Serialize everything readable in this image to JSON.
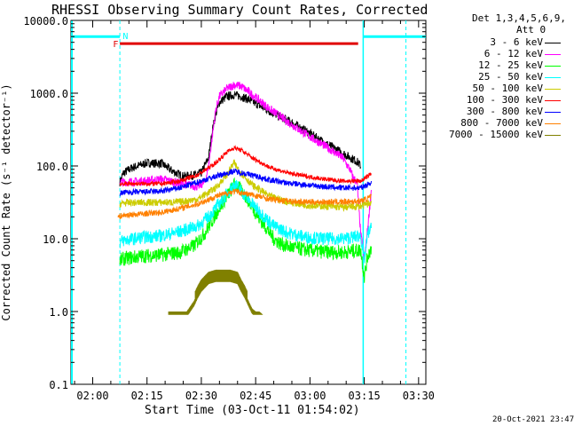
{
  "title": "RHESSI Observing Summary Count Rates, Corrected",
  "xlabel": "Start Time (03-Oct-11 01:54:02)",
  "ylabel": "Corrected Count Rate (s⁻¹ detector⁻¹)",
  "footer": "20-Oct-2021 23:47",
  "legend_header": [
    "Det 1,3,4,5,6,9,",
    "Att 0"
  ],
  "flags": {
    "flare_label": "F",
    "night_label": "N"
  },
  "colors": {
    "axes": "#000000",
    "cyan_markers": "#00ffff",
    "flare_bar": "#e00000"
  },
  "chart_data": {
    "type": "line",
    "title": "RHESSI Observing Summary Count Rates, Corrected",
    "xlabel": "Start Time (03-Oct-11 01:54:02)",
    "ylabel": "Corrected Count Rate (s⁻¹ detector⁻¹)",
    "x_tick_labels": [
      "02:00",
      "02:15",
      "02:30",
      "02:45",
      "03:00",
      "03:15",
      "03:30"
    ],
    "x_ticks_minutes": [
      6,
      21,
      36,
      51,
      66,
      81,
      96
    ],
    "xlim_minutes": [
      0,
      98
    ],
    "y_scale": "log",
    "ylim": [
      0.1,
      10000
    ],
    "y_tick_values": [
      0.1,
      1,
      10,
      100,
      1000,
      10000
    ],
    "y_tick_labels": [
      "0.1",
      "1.0",
      "10.0",
      "100.0",
      "1000.0",
      "10000.0"
    ],
    "grid": false,
    "legend_position": "right",
    "series": [
      {
        "name": "3 - 6 keV",
        "color": "#000000",
        "noise": 0.06,
        "x": [
          13.5,
          14.5,
          17,
          21,
          25,
          28,
          31,
          34,
          36,
          38,
          39,
          40,
          41,
          43,
          45,
          47,
          49,
          52,
          55,
          60,
          65,
          70,
          75,
          79,
          80
        ],
        "y": [
          60,
          80,
          95,
          110,
          108,
          85,
          72,
          75,
          80,
          130,
          300,
          520,
          750,
          900,
          950,
          900,
          820,
          680,
          560,
          420,
          300,
          210,
          150,
          115,
          100
        ]
      },
      {
        "name": "6 - 12 keV",
        "color": "#ff00ff",
        "noise": 0.06,
        "x": [
          13.5,
          14.5,
          20,
          25,
          30,
          35,
          37,
          38,
          39,
          40,
          41,
          43,
          45,
          47,
          49,
          52,
          55,
          60,
          65,
          70,
          75,
          77,
          78,
          79,
          80,
          81,
          82,
          83
        ],
        "y": [
          60,
          60,
          62,
          66,
          58,
          52,
          60,
          100,
          250,
          600,
          900,
          1150,
          1300,
          1250,
          1050,
          800,
          600,
          400,
          270,
          190,
          130,
          90,
          68,
          60,
          12,
          5,
          15,
          50
        ]
      },
      {
        "name": "12 - 25 keV",
        "color": "#00ff00",
        "noise": 0.1,
        "x": [
          13.5,
          14.5,
          20,
          25,
          30,
          34,
          37,
          40,
          42,
          44,
          45,
          46,
          48,
          50,
          52,
          54,
          56,
          58,
          60,
          65,
          70,
          75,
          80,
          81,
          82,
          83
        ],
        "y": [
          5,
          5.3,
          5.8,
          6,
          6.5,
          8,
          12,
          22,
          32,
          45,
          55,
          52,
          40,
          28,
          19,
          14,
          10,
          8.5,
          7.8,
          7,
          6.6,
          6.5,
          7,
          3,
          6,
          7.5
        ]
      },
      {
        "name": "25 - 50 keV",
        "color": "#00ffff",
        "noise": 0.09,
        "x": [
          13.5,
          14.5,
          20,
          25,
          30,
          35,
          38,
          42,
          44,
          45,
          46,
          48,
          50,
          53,
          56,
          60,
          65,
          70,
          75,
          80,
          81,
          82,
          83
        ],
        "y": [
          9,
          9.5,
          10.5,
          11,
          12.5,
          15,
          20,
          35,
          48,
          55,
          52,
          40,
          30,
          21,
          15,
          12,
          10.5,
          10,
          10,
          11,
          5,
          12,
          14
        ]
      },
      {
        "name": "50 - 100 keV",
        "color": "#cccc00",
        "noise": 0.05,
        "x": [
          13.5,
          14.5,
          20,
          25,
          30,
          35,
          40,
          43,
          45,
          47,
          50,
          55,
          60,
          65,
          70,
          75,
          80,
          82,
          83
        ],
        "y": [
          30,
          31,
          31.5,
          31.5,
          32,
          35,
          50,
          75,
          110,
          80,
          55,
          38,
          32,
          29,
          28,
          27,
          28,
          30,
          32
        ]
      },
      {
        "name": "100 - 300 keV",
        "color": "#ff0000",
        "noise": 0.03,
        "x": [
          13.5,
          14.5,
          20,
          25,
          30,
          35,
          40,
          43,
          45,
          47,
          50,
          55,
          60,
          65,
          70,
          75,
          80,
          82,
          83
        ],
        "y": [
          57,
          57,
          57,
          57,
          62,
          75,
          110,
          155,
          178,
          165,
          130,
          95,
          80,
          72,
          66,
          62,
          62,
          72,
          80
        ]
      },
      {
        "name": "300 - 800 keV",
        "color": "#0000ff",
        "noise": 0.04,
        "x": [
          13.5,
          14.5,
          20,
          25,
          30,
          35,
          40,
          45,
          50,
          55,
          60,
          65,
          70,
          75,
          80,
          82,
          83
        ],
        "y": [
          42,
          43,
          44,
          45,
          50,
          60,
          72,
          85,
          75,
          64,
          58,
          55,
          52,
          50,
          50,
          56,
          60
        ]
      },
      {
        "name": "800 - 7000 keV",
        "color": "#ff8000",
        "noise": 0.04,
        "x": [
          13,
          14.5,
          20,
          25,
          30,
          35,
          40,
          45,
          50,
          55,
          60,
          65,
          70,
          75,
          80,
          82,
          83
        ],
        "y": [
          20,
          21,
          22,
          23,
          26,
          30,
          38,
          45,
          40,
          35,
          33,
          32,
          32,
          32,
          33,
          36,
          38
        ]
      },
      {
        "name": "7000 - 15000 keV",
        "color": "#808000",
        "noise": 0.0,
        "x": [
          27,
          32,
          34,
          35,
          36,
          38,
          40,
          42,
          44,
          46,
          47,
          48,
          49,
          50,
          51,
          52,
          53,
          55
        ],
        "y": [
          1,
          1,
          1.4,
          1.8,
          2.2,
          2.8,
          3,
          3,
          3,
          2.8,
          2.2,
          1.8,
          1.4,
          1.1,
          1,
          1,
          0.9,
          0.9
        ]
      }
    ]
  }
}
